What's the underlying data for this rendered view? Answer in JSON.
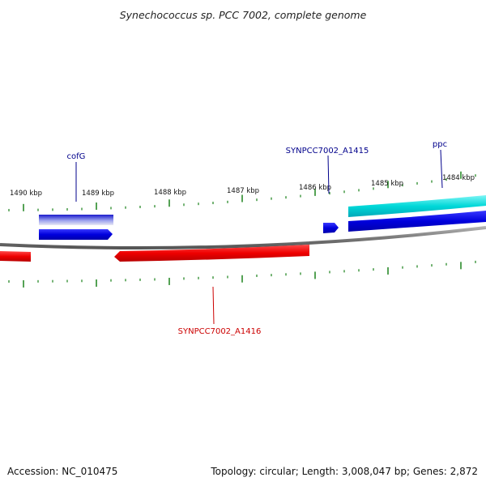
{
  "title": "Synechococcus sp. PCC 7002, complete genome",
  "footer": {
    "accession": "Accession: NC_010475",
    "summary": "Topology: circular; Length: 3,008,047 bp; Genes: 2,872"
  },
  "colors": {
    "backbone": "#888888",
    "tick": "#2a8a2a",
    "forward_gene": "#0000dd",
    "forward_gene_highlight": "#00d8d8",
    "reverse_gene": "#ee0000",
    "forward_label": "#00008b",
    "reverse_label": "#cc0000"
  },
  "scale": {
    "labels": [
      "1490 kbp",
      "1489 kbp",
      "1488 kbp",
      "1487 kbp",
      "1486 kbp",
      "1485 kbp",
      "1484 kbp"
    ]
  },
  "genes": [
    {
      "name": "cofG",
      "strand": "+",
      "label": "cofG"
    },
    {
      "name": "SYNPCC7002_A1415",
      "strand": "+",
      "label": "SYNPCC7002_A1415"
    },
    {
      "name": "ppc",
      "strand": "+",
      "label": "ppc"
    },
    {
      "name": "SYNPCC7002_A1416",
      "strand": "-",
      "label": "SYNPCC7002_A1416"
    }
  ]
}
